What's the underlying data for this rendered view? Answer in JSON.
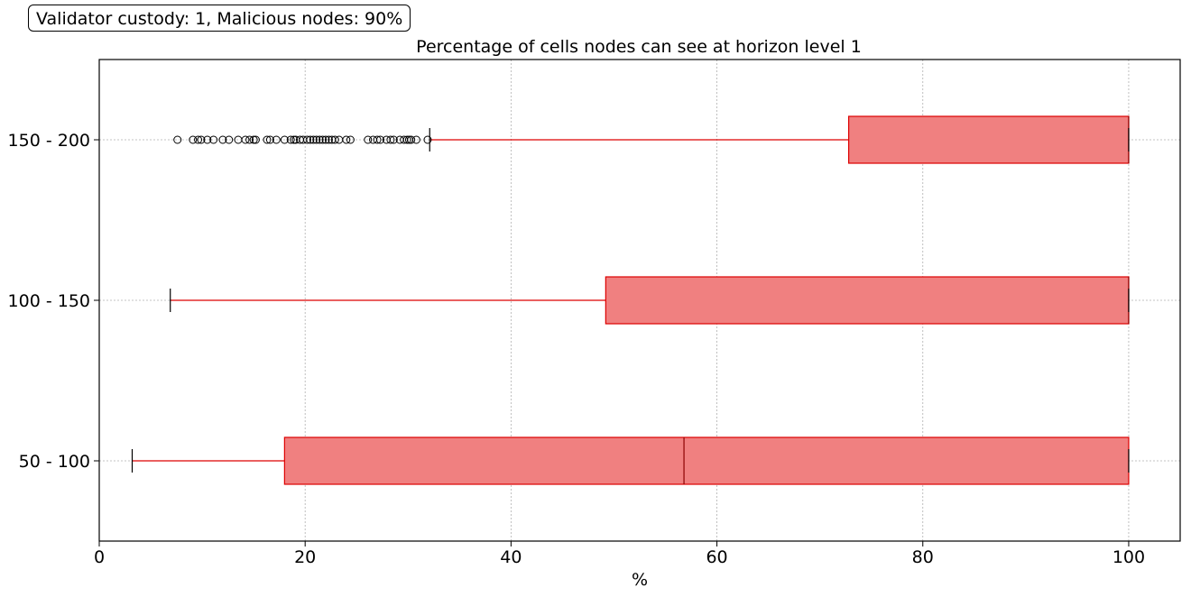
{
  "annotation": "Validator custody: 1, Malicious nodes: 90%",
  "chart_data": {
    "type": "boxplot",
    "orientation": "horizontal",
    "title": "Percentage of cells nodes can see at horizon level 1",
    "xlabel": "%",
    "ylabel": "",
    "xlim": [
      0,
      105
    ],
    "xticks": [
      0,
      20,
      40,
      60,
      80,
      100
    ],
    "grid": true,
    "box_color": "#f08080",
    "edge_color": "#dd0000",
    "categories": [
      "50 - 100",
      "100 - 150",
      "150 - 200"
    ],
    "boxes": [
      {
        "label": "50 - 100",
        "whisker_low": 3.2,
        "q1": 18.0,
        "median": 56.8,
        "q3": 100,
        "whisker_high": 100,
        "outliers": []
      },
      {
        "label": "100 - 150",
        "whisker_low": 6.9,
        "q1": 49.2,
        "median": 100,
        "q3": 100,
        "whisker_high": 100,
        "outliers": []
      },
      {
        "label": "150 - 200",
        "whisker_low": 32.1,
        "q1": 72.8,
        "median": 100,
        "q3": 100,
        "whisker_high": 100,
        "outliers": [
          7.6,
          9.1,
          9.6,
          9.9,
          10.5,
          11.1,
          12.0,
          12.6,
          13.5,
          14.2,
          14.6,
          15.0,
          15.2,
          16.3,
          16.6,
          17.2,
          18.0,
          18.6,
          18.9,
          19.1,
          19.5,
          19.8,
          20.2,
          20.5,
          20.8,
          21.1,
          21.4,
          21.7,
          22.0,
          22.3,
          22.6,
          22.9,
          23.3,
          24.0,
          24.4,
          26.1,
          26.6,
          27.0,
          27.3,
          27.9,
          28.3,
          28.6,
          29.2,
          29.6,
          29.9,
          30.1,
          30.3,
          30.8,
          31.9
        ]
      }
    ]
  }
}
